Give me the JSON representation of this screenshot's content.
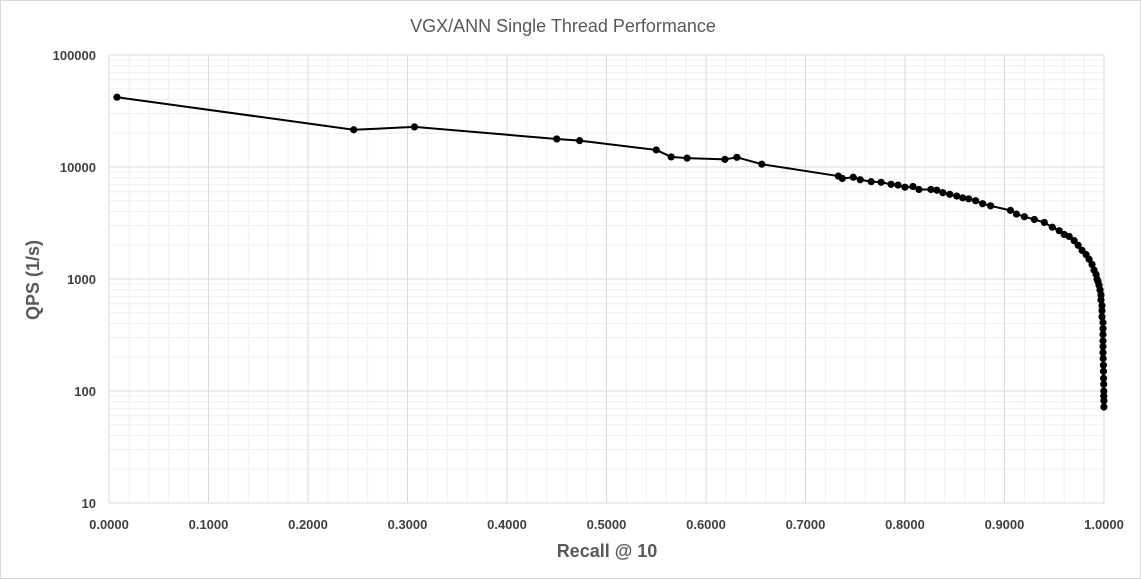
{
  "chart_data": {
    "type": "scatter",
    "title": "VGX/ANN Single Thread Performance",
    "xlabel": "Recall @ 10",
    "ylabel": "QPS  (1/s)",
    "xlim": [
      0.0,
      1.0
    ],
    "ylim": [
      10,
      100000
    ],
    "yscale": "log",
    "grid": true,
    "legend": "none",
    "x_ticks": [
      "0.0000",
      "0.1000",
      "0.2000",
      "0.3000",
      "0.4000",
      "0.5000",
      "0.6000",
      "0.7000",
      "0.8000",
      "0.9000",
      "1.0000"
    ],
    "y_ticks": [
      "10",
      "100",
      "1000",
      "10000",
      "100000"
    ],
    "colors": {
      "series": "#000000",
      "major_grid": "#d9d9d9",
      "minor_grid": "#efefef"
    },
    "series": [
      {
        "points": [
          [
            0.008,
            42000
          ],
          [
            0.246,
            21500
          ],
          [
            0.307,
            22800
          ],
          [
            0.45,
            17800
          ],
          [
            0.473,
            17200
          ],
          [
            0.55,
            14200
          ],
          [
            0.565,
            12300
          ],
          [
            0.581,
            12000
          ],
          [
            0.619,
            11700
          ],
          [
            0.631,
            12200
          ],
          [
            0.656,
            10600
          ],
          [
            0.733,
            8300
          ],
          [
            0.737,
            7900
          ],
          [
            0.748,
            8100
          ],
          [
            0.755,
            7700
          ],
          [
            0.766,
            7400
          ],
          [
            0.776,
            7300
          ],
          [
            0.786,
            7000
          ],
          [
            0.793,
            6900
          ],
          [
            0.8,
            6600
          ],
          [
            0.808,
            6700
          ],
          [
            0.814,
            6300
          ],
          [
            0.826,
            6300
          ],
          [
            0.832,
            6200
          ],
          [
            0.838,
            5900
          ],
          [
            0.845,
            5700
          ],
          [
            0.852,
            5500
          ],
          [
            0.858,
            5300
          ],
          [
            0.864,
            5200
          ],
          [
            0.871,
            5000
          ],
          [
            0.878,
            4700
          ],
          [
            0.886,
            4500
          ],
          [
            0.906,
            4100
          ],
          [
            0.912,
            3800
          ],
          [
            0.92,
            3600
          ],
          [
            0.93,
            3400
          ],
          [
            0.94,
            3200
          ],
          [
            0.948,
            2900
          ],
          [
            0.955,
            2700
          ],
          [
            0.96,
            2500
          ],
          [
            0.965,
            2400
          ],
          [
            0.97,
            2200
          ],
          [
            0.974,
            2000
          ],
          [
            0.978,
            1800
          ],
          [
            0.982,
            1650
          ],
          [
            0.985,
            1500
          ],
          [
            0.988,
            1350
          ],
          [
            0.99,
            1200
          ],
          [
            0.992,
            1100
          ],
          [
            0.993,
            1000
          ],
          [
            0.994,
            950
          ],
          [
            0.995,
            880
          ],
          [
            0.996,
            800
          ],
          [
            0.997,
            720
          ],
          [
            0.997,
            650
          ],
          [
            0.998,
            580
          ],
          [
            0.998,
            520
          ],
          [
            0.998,
            460
          ],
          [
            0.999,
            410
          ],
          [
            0.999,
            360
          ],
          [
            0.999,
            320
          ],
          [
            0.999,
            280
          ],
          [
            0.999,
            250
          ],
          [
            0.999,
            220
          ],
          [
            0.9992,
            195
          ],
          [
            0.9994,
            170
          ],
          [
            0.9995,
            150
          ],
          [
            0.9996,
            130
          ],
          [
            0.9997,
            115
          ],
          [
            0.9998,
            100
          ],
          [
            0.9998,
            90
          ],
          [
            0.9999,
            82
          ],
          [
            0.9999,
            72
          ]
        ]
      }
    ]
  }
}
